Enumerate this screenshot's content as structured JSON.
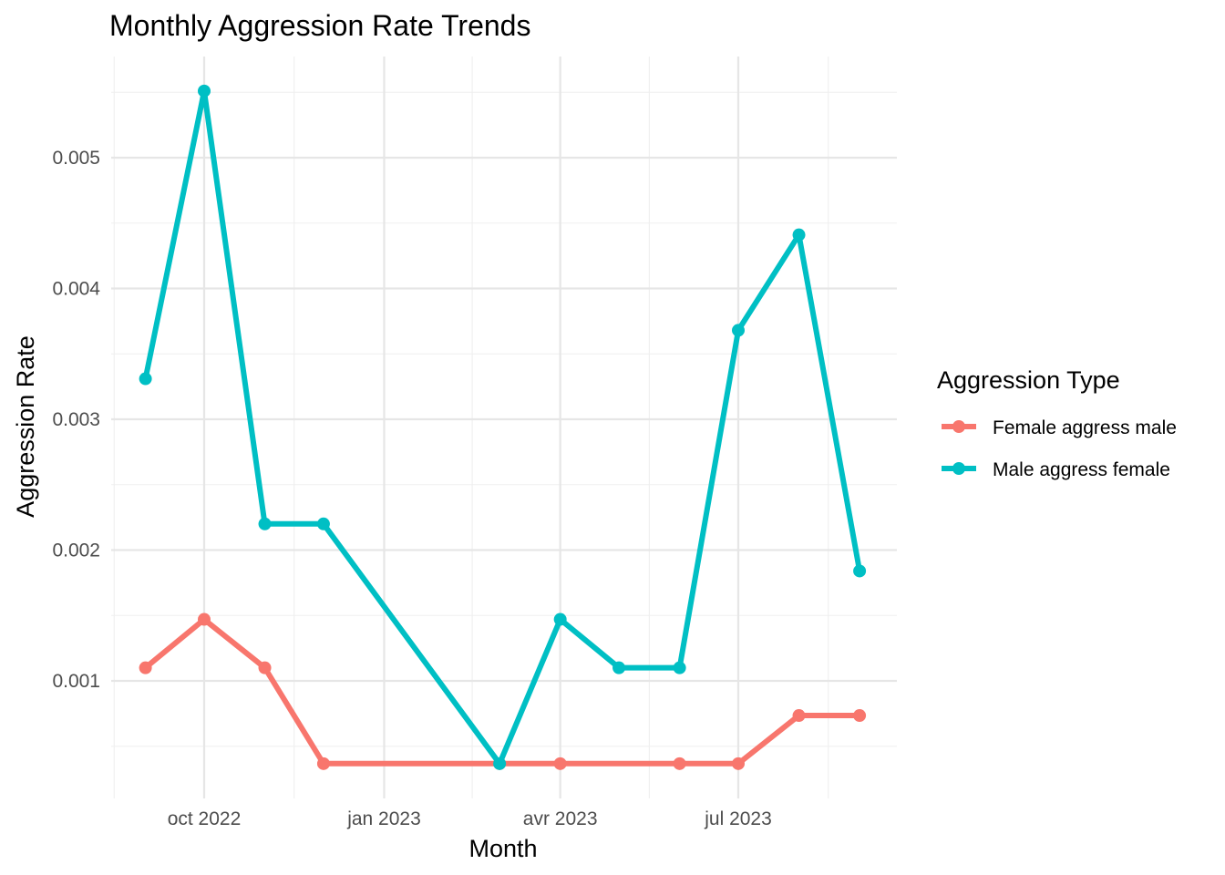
{
  "chart_data": {
    "type": "line",
    "title": "Monthly Aggression Rate Trends",
    "xlabel": "Month",
    "ylabel": "Aggression Rate",
    "x": [
      "2022-09",
      "2022-10",
      "2022-11",
      "2022-12",
      "2023-03",
      "2023-04",
      "2023-05",
      "2023-06",
      "2023-07",
      "2023-08",
      "2023-09"
    ],
    "x_ticks": [
      {
        "date": "2022-10-01",
        "label": "oct 2022"
      },
      {
        "date": "2023-01-01",
        "label": "jan 2023"
      },
      {
        "date": "2023-04-01",
        "label": "avr 2023"
      },
      {
        "date": "2023-07-01",
        "label": "jul 2023"
      }
    ],
    "y_ticks": [
      0.001,
      0.002,
      0.003,
      0.004,
      0.005
    ],
    "y_tick_labels": [
      "0.001",
      "0.002",
      "0.003",
      "0.004",
      "0.005"
    ],
    "ylim": [
      0.00015,
      0.0058
    ],
    "grid": true,
    "legend": {
      "title": "Aggression Type",
      "position": "right"
    },
    "series": [
      {
        "name": "Female aggress male",
        "color": "#F8766D",
        "points": [
          {
            "x": "2022-09-01",
            "y": 0.0011
          },
          {
            "x": "2022-10-01",
            "y": 0.00147
          },
          {
            "x": "2022-11-01",
            "y": 0.0011
          },
          {
            "x": "2022-12-01",
            "y": 0.000367
          },
          {
            "x": "2023-03-01",
            "y": 0.000367
          },
          {
            "x": "2023-04-01",
            "y": 0.000367
          },
          {
            "x": "2023-06-01",
            "y": 0.000367
          },
          {
            "x": "2023-07-01",
            "y": 0.000367
          },
          {
            "x": "2023-08-01",
            "y": 0.000735
          },
          {
            "x": "2023-09-01",
            "y": 0.000735
          }
        ]
      },
      {
        "name": "Male aggress female",
        "color": "#00BFC4",
        "points": [
          {
            "x": "2022-09-01",
            "y": 0.00331
          },
          {
            "x": "2022-10-01",
            "y": 0.00551
          },
          {
            "x": "2022-11-01",
            "y": 0.0022
          },
          {
            "x": "2022-12-01",
            "y": 0.0022
          },
          {
            "x": "2023-03-01",
            "y": 0.000367
          },
          {
            "x": "2023-04-01",
            "y": 0.00147
          },
          {
            "x": "2023-05-01",
            "y": 0.0011
          },
          {
            "x": "2023-06-01",
            "y": 0.0011
          },
          {
            "x": "2023-07-01",
            "y": 0.00368
          },
          {
            "x": "2023-08-01",
            "y": 0.00441
          },
          {
            "x": "2023-09-01",
            "y": 0.00184
          }
        ]
      }
    ]
  }
}
